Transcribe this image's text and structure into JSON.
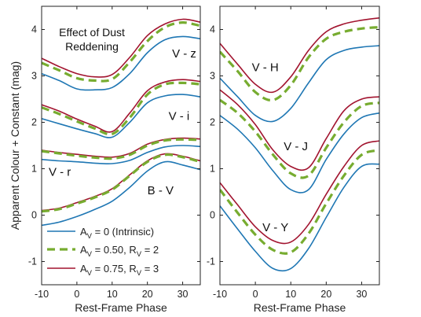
{
  "chart_data": {
    "type": "line",
    "ylabel": "Apparent Colour + Constant (mag)",
    "annotation": "Effect of Dust Reddening",
    "legend": [
      {
        "key": "intrinsic",
        "label": "A_V = 0 (Intrinsic)",
        "main": "A",
        "sub": "V",
        "rest": "= 0 (Intrinsic)"
      },
      {
        "key": "av050",
        "label": "A_V = 0.50, R_V = 2",
        "main": "A",
        "sub": "V",
        "rest": "= 0.50, R",
        "sub2": "V",
        "rest2": "= 2"
      },
      {
        "key": "av075",
        "label": "A_V = 0.75, R_V = 3",
        "main": "A",
        "sub": "V",
        "rest": "= 0.75, R",
        "sub2": "V",
        "rest2": "= 3"
      }
    ],
    "styles": {
      "intrinsic": {
        "color": "#1f77b4",
        "dash": "none",
        "width": 1.6
      },
      "av050": {
        "color": "#77ac30",
        "dash": "10,6",
        "width": 3.2
      },
      "av075": {
        "color": "#a2142f",
        "dash": "none",
        "width": 1.6
      }
    },
    "panels": [
      {
        "name": "left",
        "xlabel": "Rest-Frame Phase",
        "xlim": [
          -10,
          35
        ],
        "ylim": [
          -1.5,
          4.5
        ],
        "xticks": [
          -10,
          0,
          10,
          20,
          30
        ],
        "yticks": [
          -1,
          0,
          1,
          2,
          3,
          4
        ],
        "curves": [
          {
            "label": "V - z",
            "label_pos": [
              27,
              3.4
            ],
            "x": [
              -10,
              -5,
              0,
              5,
              10,
              15,
              20,
              25,
              30,
              35
            ],
            "series": {
              "intrinsic": [
                3.05,
                2.9,
                2.72,
                2.7,
                2.75,
                3.05,
                3.5,
                3.78,
                3.85,
                3.8
              ],
              "av050": [
                3.28,
                3.12,
                2.95,
                2.9,
                2.93,
                3.3,
                3.75,
                4.05,
                4.15,
                4.08
              ],
              "av075": [
                3.38,
                3.2,
                3.05,
                2.98,
                3.03,
                3.4,
                3.87,
                4.12,
                4.22,
                4.16
              ]
            }
          },
          {
            "label": "V - i",
            "label_pos": [
              26,
              2.05
            ],
            "x": [
              -10,
              -5,
              0,
              5,
              10,
              15,
              20,
              25,
              30,
              35
            ],
            "series": {
              "intrinsic": [
                2.08,
                1.97,
                1.86,
                1.76,
                1.68,
                2.0,
                2.42,
                2.57,
                2.6,
                2.55
              ],
              "av050": [
                2.32,
                2.18,
                2.02,
                1.87,
                1.75,
                2.1,
                2.6,
                2.82,
                2.85,
                2.82
              ],
              "av075": [
                2.38,
                2.24,
                2.07,
                1.92,
                1.8,
                2.2,
                2.68,
                2.87,
                2.92,
                2.88
              ]
            }
          },
          {
            "label": "V - r",
            "label_pos": [
              -8,
              0.85
            ],
            "x": [
              -10,
              -5,
              0,
              5,
              10,
              15,
              20,
              25,
              30,
              35
            ],
            "series": {
              "intrinsic": [
                1.2,
                1.17,
                1.15,
                1.12,
                1.11,
                1.18,
                1.35,
                1.47,
                1.5,
                1.48
              ],
              "av050": [
                1.38,
                1.33,
                1.28,
                1.24,
                1.22,
                1.3,
                1.5,
                1.61,
                1.63,
                1.62
              ],
              "av075": [
                1.4,
                1.35,
                1.31,
                1.27,
                1.25,
                1.33,
                1.53,
                1.63,
                1.66,
                1.64
              ]
            }
          },
          {
            "label": "B - V",
            "label_pos": [
              20,
              0.45
            ],
            "x": [
              -10,
              -5,
              0,
              5,
              10,
              15,
              20,
              25,
              30,
              35
            ],
            "series": {
              "intrinsic": [
                -0.22,
                -0.15,
                -0.03,
                0.12,
                0.3,
                0.6,
                0.95,
                1.15,
                1.08,
                0.98
              ],
              "av050": [
                0.08,
                0.13,
                0.25,
                0.38,
                0.55,
                0.85,
                1.15,
                1.3,
                1.25,
                1.15
              ],
              "av075": [
                0.1,
                0.15,
                0.27,
                0.4,
                0.57,
                0.87,
                1.17,
                1.32,
                1.27,
                1.17
              ]
            }
          }
        ]
      },
      {
        "name": "right",
        "xlabel": "Rest-Frame Phase",
        "xlim": [
          -10,
          35
        ],
        "ylim": [
          -1.5,
          4.5
        ],
        "xticks": [
          -10,
          0,
          10,
          20,
          30
        ],
        "yticks": [
          -1,
          0,
          1,
          2,
          3,
          4
        ],
        "curves": [
          {
            "label": "V - H",
            "label_pos": [
              -1,
              3.1
            ],
            "x": [
              -10,
              -5,
              0,
              5,
              10,
              15,
              20,
              25,
              30,
              35
            ],
            "series": {
              "intrinsic": [
                2.95,
                2.55,
                2.15,
                2.02,
                2.3,
                2.85,
                3.35,
                3.55,
                3.62,
                3.65
              ],
              "av050": [
                3.52,
                3.1,
                2.65,
                2.48,
                2.8,
                3.4,
                3.8,
                3.95,
                4.02,
                4.05
              ],
              "av075": [
                3.7,
                3.25,
                2.82,
                2.65,
                2.98,
                3.55,
                3.95,
                4.12,
                4.2,
                4.25
              ]
            }
          },
          {
            "label": "V - J",
            "label_pos": [
              8,
              1.4
            ],
            "x": [
              -10,
              -5,
              0,
              5,
              10,
              15,
              20,
              25,
              30,
              35
            ],
            "series": {
              "intrinsic": [
                2.15,
                1.85,
                1.45,
                0.95,
                0.55,
                0.55,
                1.2,
                1.75,
                2.1,
                2.2
              ],
              "av050": [
                2.48,
                2.2,
                1.8,
                1.3,
                0.9,
                0.85,
                1.45,
                2.0,
                2.35,
                2.42
              ],
              "av075": [
                2.7,
                2.38,
                1.95,
                1.4,
                1.05,
                1.02,
                1.65,
                2.25,
                2.5,
                2.55
              ]
            }
          },
          {
            "label": "V - Y",
            "label_pos": [
              2,
              -0.35
            ],
            "x": [
              -10,
              -5,
              0,
              5,
              10,
              15,
              20,
              25,
              30,
              35
            ],
            "series": {
              "intrinsic": [
                0.2,
                -0.3,
                -0.78,
                -1.15,
                -1.15,
                -0.72,
                -0.05,
                0.6,
                1.05,
                1.1
              ],
              "av050": [
                0.55,
                0.05,
                -0.42,
                -0.75,
                -0.8,
                -0.4,
                0.25,
                0.85,
                1.3,
                1.4
              ],
              "av075": [
                0.7,
                0.22,
                -0.25,
                -0.55,
                -0.58,
                -0.2,
                0.45,
                1.05,
                1.5,
                1.6
              ]
            }
          }
        ]
      }
    ]
  }
}
